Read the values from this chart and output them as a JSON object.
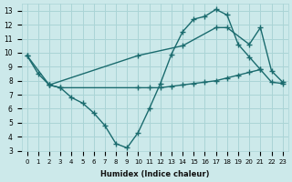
{
  "bg_color": "#cce9ea",
  "grid_color": "#aad4d6",
  "line_color": "#1a6b6e",
  "marker": "+",
  "markersize": 5,
  "linewidth": 1.0,
  "xlabel": "Humidex (Indice chaleur)",
  "xlim": [
    -0.5,
    23.5
  ],
  "ylim": [
    3,
    13.5
  ],
  "yticks": [
    3,
    4,
    5,
    6,
    7,
    8,
    9,
    10,
    11,
    12,
    13
  ],
  "xticks": [
    0,
    1,
    2,
    3,
    4,
    5,
    6,
    7,
    8,
    9,
    10,
    11,
    12,
    13,
    14,
    15,
    16,
    17,
    18,
    19,
    20,
    21,
    22,
    23
  ],
  "line1_x": [
    0,
    1,
    2,
    3,
    4,
    5,
    6,
    7,
    8,
    9,
    10,
    11,
    12,
    13,
    14,
    15,
    16,
    17,
    18,
    19,
    20,
    21
  ],
  "line1_y": [
    9.8,
    8.5,
    7.7,
    7.5,
    6.8,
    6.4,
    5.7,
    4.8,
    3.5,
    3.2,
    4.3,
    6.0,
    7.8,
    9.9,
    11.5,
    12.4,
    12.6,
    13.1,
    12.7,
    10.6,
    9.7,
    8.8
  ],
  "line2_x": [
    0,
    2,
    10,
    14,
    17,
    18,
    20,
    21,
    22,
    23
  ],
  "line2_y": [
    9.8,
    7.7,
    9.8,
    10.5,
    11.8,
    11.8,
    10.6,
    11.8,
    8.7,
    7.9
  ],
  "line3_x": [
    2,
    3,
    10,
    11,
    12,
    13,
    14,
    15,
    16,
    17,
    18,
    19,
    20,
    21,
    22,
    23
  ],
  "line3_y": [
    7.7,
    7.5,
    7.5,
    7.5,
    7.5,
    7.6,
    7.7,
    7.8,
    7.9,
    8.0,
    8.2,
    8.4,
    8.6,
    8.8,
    7.9,
    7.8
  ]
}
